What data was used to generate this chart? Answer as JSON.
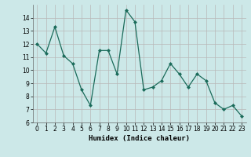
{
  "x": [
    0,
    1,
    2,
    3,
    4,
    5,
    6,
    7,
    8,
    9,
    10,
    11,
    12,
    13,
    14,
    15,
    16,
    17,
    18,
    19,
    20,
    21,
    22,
    23
  ],
  "y": [
    12.0,
    11.3,
    13.3,
    11.1,
    10.5,
    8.5,
    7.3,
    11.5,
    11.5,
    9.7,
    14.6,
    13.7,
    8.5,
    8.7,
    9.2,
    10.5,
    9.7,
    8.7,
    9.7,
    9.2,
    7.5,
    7.0,
    7.3,
    6.5
  ],
  "line_color": "#1a6b5a",
  "marker": "D",
  "markersize": 2.0,
  "linewidth": 0.9,
  "bg_color": "#cce8e8",
  "grid_color": "#b8b8b8",
  "xlabel": "Humidex (Indice chaleur)",
  "xlabel_fontsize": 6.5,
  "tick_fontsize": 5.5,
  "xlim": [
    -0.5,
    23.5
  ],
  "ylim": [
    6,
    15
  ],
  "yticks": [
    6,
    7,
    8,
    9,
    10,
    11,
    12,
    13,
    14
  ],
  "xticks": [
    0,
    1,
    2,
    3,
    4,
    5,
    6,
    7,
    8,
    9,
    10,
    11,
    12,
    13,
    14,
    15,
    16,
    17,
    18,
    19,
    20,
    21,
    22,
    23
  ]
}
